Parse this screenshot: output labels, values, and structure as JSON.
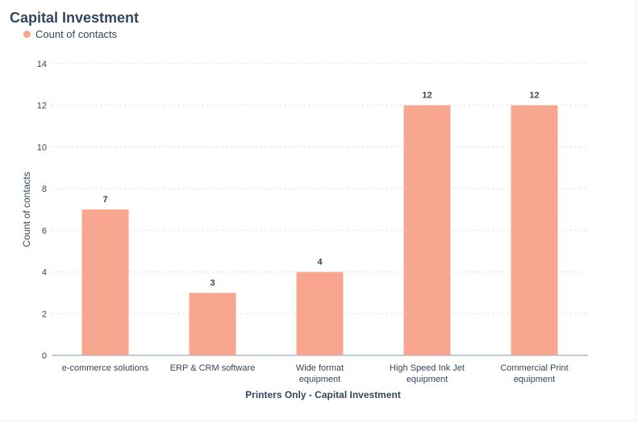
{
  "chart_data": {
    "type": "bar",
    "title": "Capital Investment",
    "xlabel": "Printers Only - Capital Investment",
    "ylabel": "Count of contacts",
    "ylim": [
      0,
      14
    ],
    "yticks": [
      0,
      2,
      4,
      6,
      8,
      10,
      12,
      14
    ],
    "grid": true,
    "legend_position": "top-left",
    "categories": [
      [
        "e-commerce solutions"
      ],
      [
        "ERP & CRM software"
      ],
      [
        "Wide format",
        "equipment"
      ],
      [
        "High Speed Ink Jet",
        "equipment"
      ],
      [
        "Commercial Print",
        "equipment"
      ]
    ],
    "series": [
      {
        "name": "Count of contacts",
        "values": [
          7,
          3,
          4,
          12,
          12
        ],
        "color": "#f8a68f"
      }
    ]
  },
  "colors": {
    "bar": "#f8a68f",
    "text": "#33475b",
    "grid": "#dfe3eb",
    "axis": "#7c98b6"
  }
}
